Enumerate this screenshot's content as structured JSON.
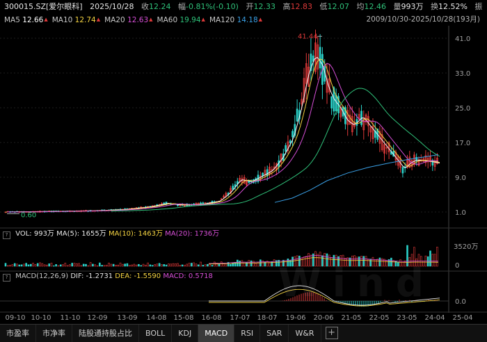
{
  "header": {
    "code": "300015.SZ[爱尔眼科]",
    "date": "2025/10/28",
    "close_label": "收",
    "close": "12.24",
    "change_label": "幅",
    "change": "-0.81%(-0.10)",
    "open_label": "开",
    "open": "12.33",
    "high_label": "高",
    "high": "12.83",
    "low_label": "低",
    "low": "12.07",
    "avg_label": "均",
    "avg": "12.46",
    "volume_label": "量",
    "volume": "993万",
    "turnover_label": "换",
    "turnover": "12.52%",
    "amp_label": "振"
  },
  "ma_line": {
    "items": [
      {
        "label": "MA5",
        "value": "12.66",
        "color": "#ffffff"
      },
      {
        "label": "MA10",
        "value": "12.74",
        "color": "#f5d442"
      },
      {
        "label": "MA20",
        "value": "12.63",
        "color": "#d84fd8"
      },
      {
        "label": "MA60",
        "value": "19.94",
        "color": "#2fc27a"
      },
      {
        "label": "MA120",
        "value": "14.18",
        "color": "#3aa0e6"
      }
    ],
    "range": "2009/10/30-2025/10/28(193月)"
  },
  "price_axis": [
    "41.0",
    "33.0",
    "25.0",
    "17.0",
    "9.0",
    "1.0"
  ],
  "price_annotations": {
    "max": "41.44",
    "min": "0.60"
  },
  "volume_header": {
    "vol_label": "VOL: 993万",
    "ma5": "MA(5): 1655万",
    "ma10": "MA(10): 1463万",
    "ma20": "MA(20): 1736万",
    "vol_color": "#e8e8e8",
    "ma5_color": "#e8e8e8",
    "ma10_color": "#f5d442",
    "ma20_color": "#d84fd8"
  },
  "volume_axis": [
    "3520万",
    "0"
  ],
  "macd_header": {
    "title": "MACD(12,26,9)",
    "dif": "DIF: -1.2731",
    "dea": "DEA: -1.5590",
    "macd": "MACD: 0.5718",
    "dif_color": "#e8e8e8",
    "dea_color": "#f5d442",
    "macd_color": "#d84fd8"
  },
  "macd_axis": [
    "0.0"
  ],
  "watermark": "Wind",
  "date_axis": [
    "09-10",
    "10-10",
    "11-10",
    "12-09",
    "13-09",
    "14-08",
    "15-08",
    "16-08",
    "17-07",
    "18-07",
    "19-06",
    "20-06",
    "21-05",
    "22-05",
    "23-05",
    "24-04",
    "25-04"
  ],
  "tabs": [
    {
      "label": "市盈率",
      "active": false
    },
    {
      "label": "市净率",
      "active": false
    },
    {
      "label": "陆股通持股占比",
      "active": false
    },
    {
      "label": "BOLL",
      "active": false
    },
    {
      "label": "KDJ",
      "active": false
    },
    {
      "label": "MACD",
      "active": true
    },
    {
      "label": "RSI",
      "active": false
    },
    {
      "label": "SAR",
      "active": false
    },
    {
      "label": "W&R",
      "active": false
    }
  ],
  "colors": {
    "up": "#e03a3a",
    "down": "#2ad0c8",
    "bg": "#000000"
  }
}
